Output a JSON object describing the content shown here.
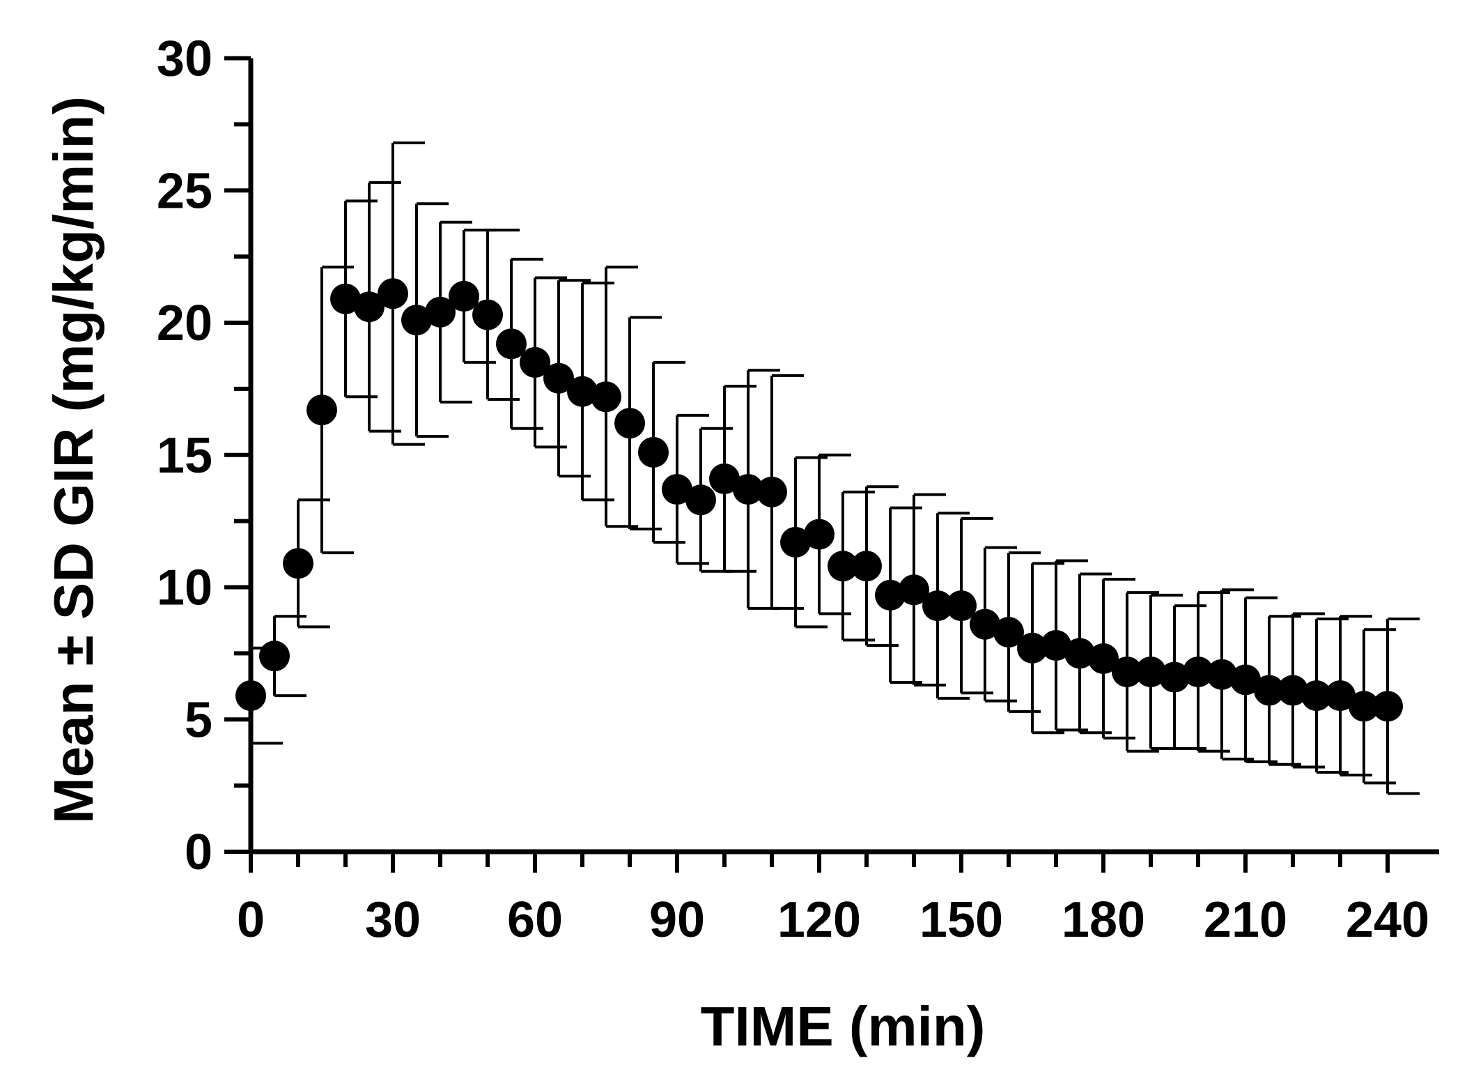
{
  "chart_data": {
    "type": "scatter",
    "title": "",
    "xlabel": "TIME (min)",
    "ylabel": "Mean ± SD GIR (mg/kg/min)",
    "xlim": [
      0,
      250
    ],
    "ylim": [
      0,
      30
    ],
    "xticks": [
      0,
      30,
      60,
      90,
      120,
      150,
      180,
      210,
      240
    ],
    "xminor_step": 5,
    "yticks": [
      0,
      5,
      10,
      15,
      20,
      25,
      30
    ],
    "yminor_step": 2.5,
    "grid": false,
    "series": [
      {
        "name": "GIR",
        "color": "#000000",
        "x": [
          0,
          5,
          10,
          15,
          20,
          25,
          30,
          35,
          40,
          45,
          50,
          55,
          60,
          65,
          70,
          75,
          80,
          85,
          90,
          95,
          100,
          105,
          110,
          115,
          120,
          125,
          130,
          135,
          140,
          145,
          150,
          155,
          160,
          165,
          170,
          175,
          180,
          185,
          190,
          195,
          200,
          205,
          210,
          215,
          220,
          225,
          230,
          235,
          240
        ],
        "y": [
          5.9,
          7.4,
          10.9,
          16.7,
          20.9,
          20.6,
          21.1,
          20.1,
          20.4,
          21.0,
          20.3,
          19.2,
          18.5,
          17.9,
          17.4,
          17.2,
          16.2,
          15.1,
          13.7,
          13.3,
          14.1,
          13.7,
          13.6,
          11.7,
          12.0,
          10.8,
          10.8,
          9.7,
          9.9,
          9.3,
          9.3,
          8.6,
          8.3,
          7.7,
          7.8,
          7.5,
          7.3,
          6.8,
          6.8,
          6.6,
          6.8,
          6.7,
          6.5,
          6.1,
          6.1,
          5.9,
          5.9,
          5.5,
          5.5
        ],
        "sd": [
          1.8,
          1.5,
          2.4,
          5.4,
          3.7,
          4.7,
          5.7,
          4.4,
          3.4,
          2.5,
          3.2,
          3.2,
          3.2,
          3.7,
          4.1,
          4.9,
          4.0,
          3.4,
          2.8,
          2.7,
          3.5,
          4.5,
          4.4,
          3.2,
          3.0,
          2.8,
          3.0,
          3.3,
          3.6,
          3.5,
          3.3,
          2.9,
          3.0,
          3.2,
          3.2,
          3.0,
          3.0,
          3.0,
          2.9,
          2.7,
          3.0,
          3.2,
          3.1,
          2.8,
          2.9,
          2.9,
          3.0,
          2.9,
          3.3
        ]
      }
    ]
  }
}
